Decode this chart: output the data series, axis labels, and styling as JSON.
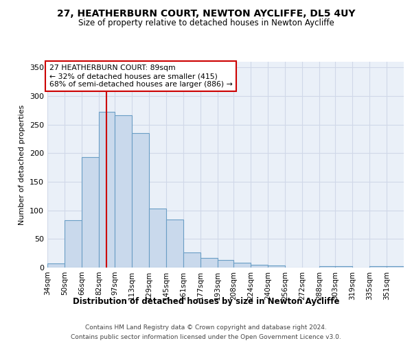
{
  "title1": "27, HEATHERBURN COURT, NEWTON AYCLIFFE, DL5 4UY",
  "title2": "Size of property relative to detached houses in Newton Aycliffe",
  "xlabel": "Distribution of detached houses by size in Newton Aycliffe",
  "ylabel": "Number of detached properties",
  "bar_color": "#c9d9ec",
  "bar_edge_color": "#6a9ec5",
  "grid_color": "#d0d8e8",
  "bg_color": "#eaf0f8",
  "vline_x": 89,
  "vline_color": "#cc0000",
  "annotation_text": "27 HEATHERBURN COURT: 89sqm\n← 32% of detached houses are smaller (415)\n68% of semi-detached houses are larger (886) →",
  "annotation_box_color": "#ffffff",
  "annotation_box_edge": "#cc0000",
  "footer1": "Contains HM Land Registry data © Crown copyright and database right 2024.",
  "footer2": "Contains public sector information licensed under the Open Government Licence v3.0.",
  "categories": [
    "34sqm",
    "50sqm",
    "66sqm",
    "82sqm",
    "97sqm",
    "113sqm",
    "129sqm",
    "145sqm",
    "161sqm",
    "177sqm",
    "193sqm",
    "208sqm",
    "224sqm",
    "240sqm",
    "256sqm",
    "272sqm",
    "288sqm",
    "303sqm",
    "319sqm",
    "335sqm",
    "351sqm"
  ],
  "bin_edges": [
    34,
    50,
    66,
    82,
    97,
    113,
    129,
    145,
    161,
    177,
    193,
    208,
    224,
    240,
    256,
    272,
    288,
    303,
    319,
    335,
    351,
    367
  ],
  "values": [
    7,
    83,
    193,
    272,
    267,
    235,
    103,
    84,
    27,
    17,
    13,
    8,
    5,
    4,
    0,
    0,
    3,
    2,
    0,
    3,
    2
  ],
  "ylim": [
    0,
    360
  ],
  "yticks": [
    0,
    50,
    100,
    150,
    200,
    250,
    300,
    350
  ]
}
